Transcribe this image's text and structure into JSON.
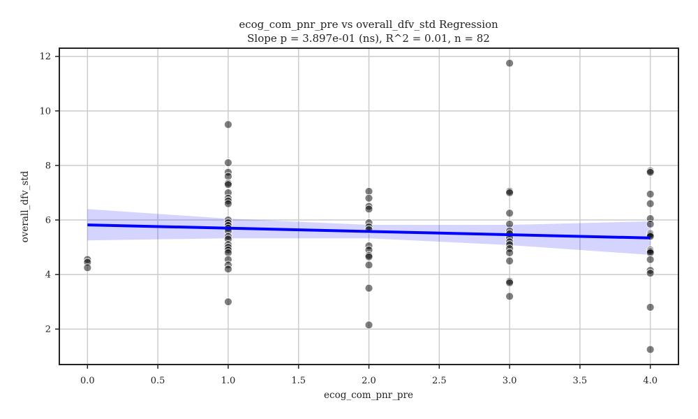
{
  "chart_data": {
    "type": "scatter",
    "title": "ecog_com_pnr_pre vs overall_dfv_std Regression",
    "subtitle": "Slope p = 3.897e-01 (ns), R^2 = 0.01, n = 82",
    "xlabel": "ecog_com_pnr_pre",
    "ylabel": "overall_dfv_std",
    "xlim": [
      -0.2,
      4.2
    ],
    "ylim": [
      0.7,
      12.3
    ],
    "x_ticks": [
      "0.0",
      "0.5",
      "1.0",
      "1.5",
      "2.0",
      "2.5",
      "3.0",
      "3.5",
      "4.0"
    ],
    "y_ticks": [
      "2",
      "4",
      "6",
      "8",
      "10",
      "12"
    ],
    "x_tick_values": [
      0,
      0.5,
      1,
      1.5,
      2,
      2.5,
      3,
      3.5,
      4
    ],
    "y_tick_values": [
      2,
      4,
      6,
      8,
      10,
      12
    ],
    "grid": true,
    "points": [
      {
        "x": 0,
        "y": 4.55
      },
      {
        "x": 0,
        "y": 4.45
      },
      {
        "x": 0,
        "y": 4.25
      },
      {
        "x": 1,
        "y": 9.5
      },
      {
        "x": 1,
        "y": 8.1
      },
      {
        "x": 1,
        "y": 7.75
      },
      {
        "x": 1,
        "y": 7.6
      },
      {
        "x": 1,
        "y": 7.35
      },
      {
        "x": 1,
        "y": 7.3
      },
      {
        "x": 1,
        "y": 7.0
      },
      {
        "x": 1,
        "y": 6.8
      },
      {
        "x": 1,
        "y": 6.7
      },
      {
        "x": 1,
        "y": 6.6
      },
      {
        "x": 1,
        "y": 6.0
      },
      {
        "x": 1,
        "y": 5.9
      },
      {
        "x": 1,
        "y": 5.8
      },
      {
        "x": 1,
        "y": 5.7
      },
      {
        "x": 1,
        "y": 5.6
      },
      {
        "x": 1,
        "y": 5.4
      },
      {
        "x": 1,
        "y": 5.3
      },
      {
        "x": 1,
        "y": 5.1
      },
      {
        "x": 1,
        "y": 5.0
      },
      {
        "x": 1,
        "y": 4.9
      },
      {
        "x": 1,
        "y": 4.8
      },
      {
        "x": 1,
        "y": 4.55
      },
      {
        "x": 1,
        "y": 4.35
      },
      {
        "x": 1,
        "y": 4.2
      },
      {
        "x": 1,
        "y": 3.0
      },
      {
        "x": 2,
        "y": 7.05
      },
      {
        "x": 2,
        "y": 6.8
      },
      {
        "x": 2,
        "y": 6.5
      },
      {
        "x": 2,
        "y": 6.4
      },
      {
        "x": 2,
        "y": 5.9
      },
      {
        "x": 2,
        "y": 5.75
      },
      {
        "x": 2,
        "y": 5.65
      },
      {
        "x": 2,
        "y": 5.05
      },
      {
        "x": 2,
        "y": 4.9
      },
      {
        "x": 2,
        "y": 4.7
      },
      {
        "x": 2,
        "y": 4.65
      },
      {
        "x": 2,
        "y": 4.35
      },
      {
        "x": 2,
        "y": 3.5
      },
      {
        "x": 2,
        "y": 2.15
      },
      {
        "x": 3,
        "y": 11.75
      },
      {
        "x": 3,
        "y": 7.05
      },
      {
        "x": 3,
        "y": 7.0
      },
      {
        "x": 3,
        "y": 6.25
      },
      {
        "x": 3,
        "y": 5.85
      },
      {
        "x": 3,
        "y": 5.6
      },
      {
        "x": 3,
        "y": 5.5
      },
      {
        "x": 3,
        "y": 5.35
      },
      {
        "x": 3,
        "y": 5.2
      },
      {
        "x": 3,
        "y": 5.1
      },
      {
        "x": 3,
        "y": 4.95
      },
      {
        "x": 3,
        "y": 4.8
      },
      {
        "x": 3,
        "y": 4.5
      },
      {
        "x": 3,
        "y": 3.75
      },
      {
        "x": 3,
        "y": 3.7
      },
      {
        "x": 3,
        "y": 3.2
      },
      {
        "x": 4,
        "y": 7.8
      },
      {
        "x": 4,
        "y": 7.75
      },
      {
        "x": 4,
        "y": 6.95
      },
      {
        "x": 4,
        "y": 6.6
      },
      {
        "x": 4,
        "y": 6.05
      },
      {
        "x": 4,
        "y": 5.85
      },
      {
        "x": 4,
        "y": 5.5
      },
      {
        "x": 4,
        "y": 5.45
      },
      {
        "x": 4,
        "y": 5.4
      },
      {
        "x": 4,
        "y": 4.9
      },
      {
        "x": 4,
        "y": 4.85
      },
      {
        "x": 4,
        "y": 4.8
      },
      {
        "x": 4,
        "y": 4.55
      },
      {
        "x": 4,
        "y": 4.15
      },
      {
        "x": 4,
        "y": 4.05
      },
      {
        "x": 4,
        "y": 2.8
      },
      {
        "x": 4,
        "y": 1.25
      }
    ],
    "regression": {
      "x": [
        0,
        4
      ],
      "y": [
        5.82,
        5.34
      ],
      "ci_x": [
        0,
        1,
        2,
        3,
        4
      ],
      "ci_upper": [
        6.4,
        6.05,
        5.82,
        5.82,
        5.95
      ],
      "ci_lower": [
        5.25,
        5.33,
        5.33,
        5.08,
        4.72
      ]
    },
    "colors": {
      "points": "#000000",
      "point_edge": "#ffffff",
      "regression_line": "#0000ff",
      "ci_band": "#0000ff",
      "grid": "#cccccc",
      "frame": "#222222"
    }
  }
}
